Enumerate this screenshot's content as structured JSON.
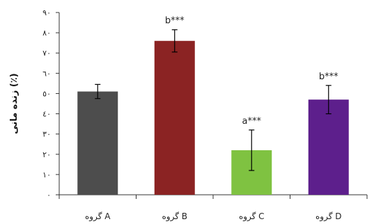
{
  "chart_data": {
    "type": "bar",
    "title": "",
    "xlabel": "",
    "ylabel": "زنده مانی (٪)",
    "ylim": [
      0,
      90
    ],
    "y_ticks": [
      0,
      10,
      20,
      30,
      40,
      50,
      60,
      70,
      80,
      90
    ],
    "y_tick_labels": [
      "٠",
      "١٠",
      "٢٠",
      "٣٠",
      "٤٠",
      "٥٠",
      "٦٠",
      "٧٠",
      "٨٠",
      "٩٠"
    ],
    "categories": [
      "گروه A",
      "گروه B",
      "گروه C",
      "گروه D"
    ],
    "values": [
      51,
      76,
      22,
      47
    ],
    "errors": [
      3.5,
      5.5,
      10,
      7
    ],
    "significance": [
      "",
      "b***",
      "a***",
      "b***"
    ],
    "colors": [
      "#4d4d4d",
      "#8b2323",
      "#7fc241",
      "#5d1f8c"
    ],
    "grid": false,
    "legend": "none"
  }
}
